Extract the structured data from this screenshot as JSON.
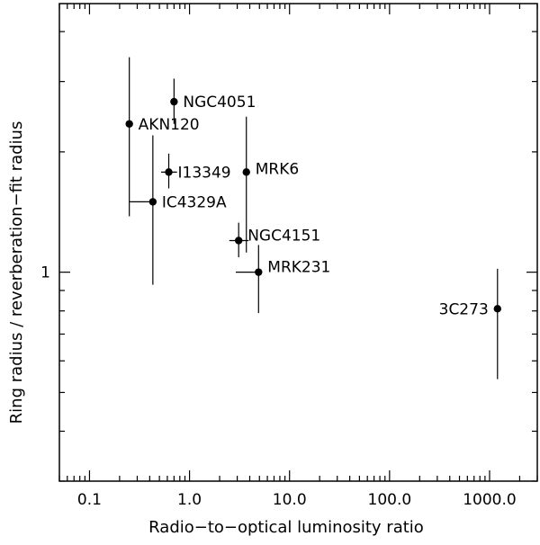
{
  "chart_data": {
    "type": "scatter",
    "title": "",
    "xlabel": "Radio−to−optical luminosity ratio",
    "ylabel": "Ring radius / reverberation−fit radius",
    "x_scale": "log",
    "y_scale": "log",
    "xlim": [
      0.05,
      3000
    ],
    "ylim": [
      0.3,
      4.7
    ],
    "x_ticks": [
      0.1,
      1.0,
      10.0,
      100.0,
      1000.0
    ],
    "x_tick_labels": [
      "0.1",
      "1.0",
      "10.0",
      "100.0",
      "1000.0"
    ],
    "y_ticks": [
      1
    ],
    "y_tick_labels": [
      "1"
    ],
    "grid": false,
    "legend": "none",
    "point_color": "#000000",
    "points": [
      {
        "label": "NGC4051",
        "x": 0.7,
        "y": 2.67,
        "x_err": [
          0.7,
          0.7
        ],
        "y_err": [
          2.35,
          3.05
        ]
      },
      {
        "label": "AKN120",
        "x": 0.25,
        "y": 2.35,
        "x_err": [
          0.25,
          0.25
        ],
        "y_err": [
          1.38,
          3.45
        ]
      },
      {
        "label": "I13349",
        "x": 0.62,
        "y": 1.78,
        "x_err": [
          0.52,
          0.75
        ],
        "y_err": [
          1.62,
          1.98
        ]
      },
      {
        "label": "MRK6",
        "x": 3.7,
        "y": 1.78,
        "x_err": [
          3.7,
          3.7
        ],
        "y_err": [
          1.12,
          2.45
        ]
      },
      {
        "label": "IC4329A",
        "x": 0.43,
        "y": 1.5,
        "x_err": [
          0.25,
          0.43
        ],
        "y_err": [
          0.93,
          2.2
        ]
      },
      {
        "label": "NGC4151",
        "x": 3.1,
        "y": 1.2,
        "x_err": [
          2.5,
          3.9
        ],
        "y_err": [
          1.09,
          1.33
        ]
      },
      {
        "label": "MRK231",
        "x": 4.9,
        "y": 1.0,
        "x_err": [
          2.9,
          5.0
        ],
        "y_err": [
          0.79,
          1.17
        ]
      },
      {
        "label": "3C273",
        "x": 1200,
        "y": 0.81,
        "x_err": [
          1200,
          1200
        ],
        "y_err": [
          0.54,
          1.02
        ]
      }
    ]
  }
}
